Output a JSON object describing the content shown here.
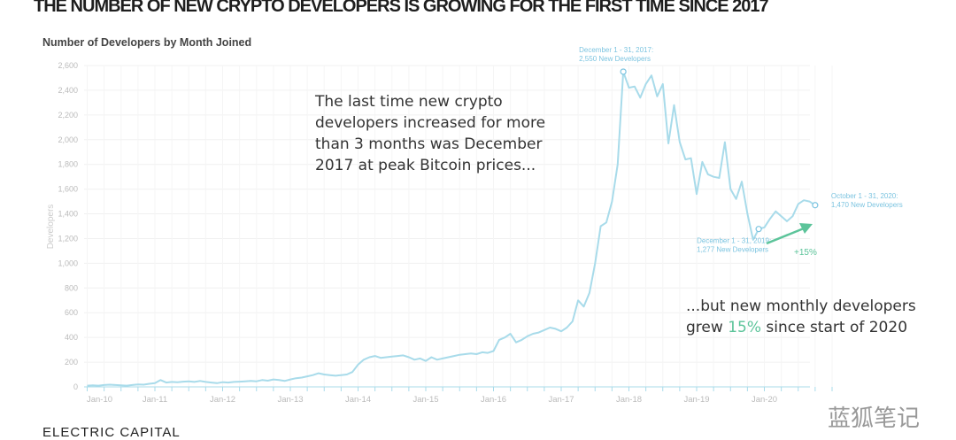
{
  "title": "THE NUMBER OF NEW CRYPTO DEVELOPERS IS GROWING FOR THE FIRST TIME SINCE 2017",
  "notes": {
    "left": [
      "The last time new crypto",
      "developers increased for more",
      "than 3 months was December",
      "2017 at peak Bitcoin prices..."
    ],
    "right_line1": "...but new monthly developers",
    "right_line2_pre": "grew ",
    "right_line2_pct": "15%",
    "right_line2_post": " since start of 2020"
  },
  "footer": {
    "logo": "ELECTRIC CAPITAL",
    "watermark": "蓝狐笔记"
  },
  "colors": {
    "line": "#a8dbea",
    "annotation": "#7cc4e0",
    "growth": "#5cc49a"
  },
  "chart_data": {
    "type": "line",
    "title": "Number of Developers by Month Joined",
    "ylabel": "Developers",
    "xlabel": "",
    "ylim": [
      0,
      2600
    ],
    "yticks": [
      0,
      200,
      400,
      600,
      800,
      1000,
      1200,
      1400,
      1600,
      1800,
      2000,
      2200,
      2400,
      2600
    ],
    "yticklabels": [
      "0",
      "200",
      "400",
      "600",
      "800",
      "1,000",
      "1,200",
      "1,400",
      "1,600",
      "1,800",
      "2,000",
      "2,200",
      "2,400",
      "2,600"
    ],
    "xticklabels": [
      "Jan-10",
      "Jan-11",
      "Jan-12",
      "Jan-13",
      "Jan-14",
      "Jan-15",
      "Jan-16",
      "Jan-17",
      "Jan-18",
      "Jan-19",
      "Jan-20"
    ],
    "x_start": "2010-01",
    "x_end": "2020-10",
    "grid": true,
    "values": [
      10,
      12,
      10,
      15,
      18,
      15,
      12,
      10,
      15,
      20,
      18,
      25,
      30,
      55,
      35,
      40,
      38,
      42,
      45,
      40,
      48,
      40,
      35,
      30,
      38,
      35,
      40,
      42,
      45,
      48,
      45,
      55,
      50,
      60,
      55,
      48,
      60,
      70,
      75,
      85,
      95,
      110,
      100,
      95,
      90,
      95,
      100,
      120,
      180,
      220,
      240,
      250,
      235,
      240,
      245,
      250,
      255,
      240,
      220,
      230,
      210,
      240,
      220,
      230,
      240,
      250,
      260,
      265,
      270,
      265,
      280,
      275,
      290,
      380,
      400,
      430,
      360,
      380,
      410,
      430,
      440,
      460,
      480,
      470,
      450,
      480,
      530,
      700,
      650,
      760,
      1000,
      1300,
      1330,
      1500,
      1800,
      2550,
      2420,
      2430,
      2340,
      2450,
      2520,
      2350,
      2450,
      1970,
      2280,
      1980,
      1840,
      1850,
      1560,
      1820,
      1720,
      1700,
      1690,
      1980,
      1600,
      1520,
      1660,
      1400,
      1190,
      1277,
      1290,
      1360,
      1420,
      1380,
      1340,
      1380,
      1480,
      1510,
      1500,
      1470
    ],
    "annotations": [
      {
        "month": "2017-12",
        "value": 2550,
        "lines": [
          "December 1 - 31, 2017:",
          "2,550 New Developers"
        ]
      },
      {
        "month": "2019-12",
        "value": 1277,
        "lines": [
          "December 1 - 31, 2019:",
          "1,277 New Developers"
        ]
      },
      {
        "month": "2020-10",
        "value": 1470,
        "lines": [
          "October 1 - 31, 2020:",
          "1,470 New Developers"
        ]
      }
    ],
    "growth_label": "+15%"
  }
}
